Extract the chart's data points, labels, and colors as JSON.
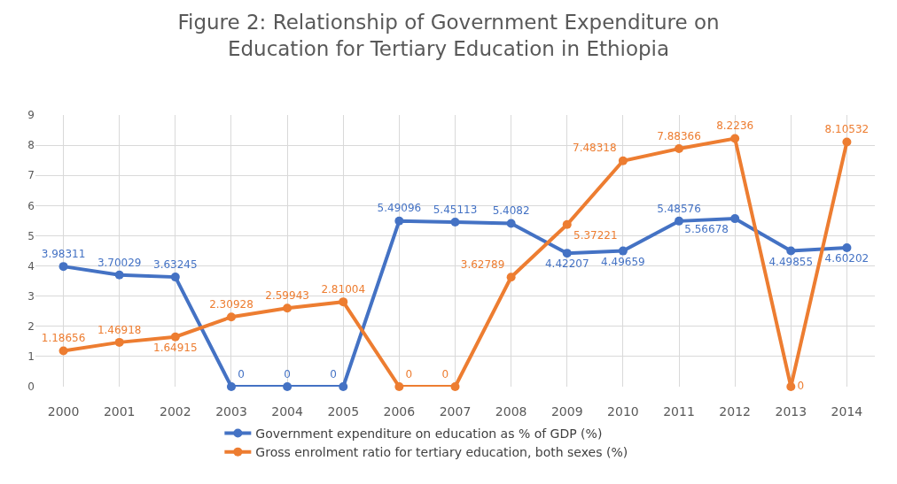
{
  "chart_data": {
    "type": "line",
    "title": "Figure 2: Relationship of Government Expenditure on Education for Tertiary Education in Ethiopia",
    "categories": [
      "2000",
      "2001",
      "2002",
      "2003",
      "2004",
      "2005",
      "2006",
      "2007",
      "2008",
      "2009",
      "2010",
      "2011",
      "2012",
      "2013",
      "2014"
    ],
    "series": [
      {
        "name": "Government expenditure on education as % of GDP (%)",
        "color": "#4472c4",
        "values": [
          3.98311,
          3.70029,
          3.63245,
          0,
          0,
          0,
          5.49096,
          5.45113,
          5.4082,
          4.42207,
          4.49659,
          5.48576,
          5.56678,
          4.49855,
          4.60202
        ]
      },
      {
        "name": "Gross enrolment ratio for tertiary education, both sexes (%)",
        "color": "#ed7d31",
        "values": [
          1.18656,
          1.46918,
          1.64915,
          2.30928,
          2.59943,
          2.81004,
          0,
          0,
          3.62789,
          5.37221,
          7.48318,
          7.88366,
          8.2236,
          0,
          8.10532
        ]
      }
    ],
    "ylim": [
      0,
      9
    ],
    "yticks": [
      0,
      1,
      2,
      3,
      4,
      5,
      6,
      7,
      8,
      9
    ],
    "grid": true,
    "legend": "bottom",
    "marker": "circle",
    "line_style": "solid",
    "data_labels": true
  }
}
